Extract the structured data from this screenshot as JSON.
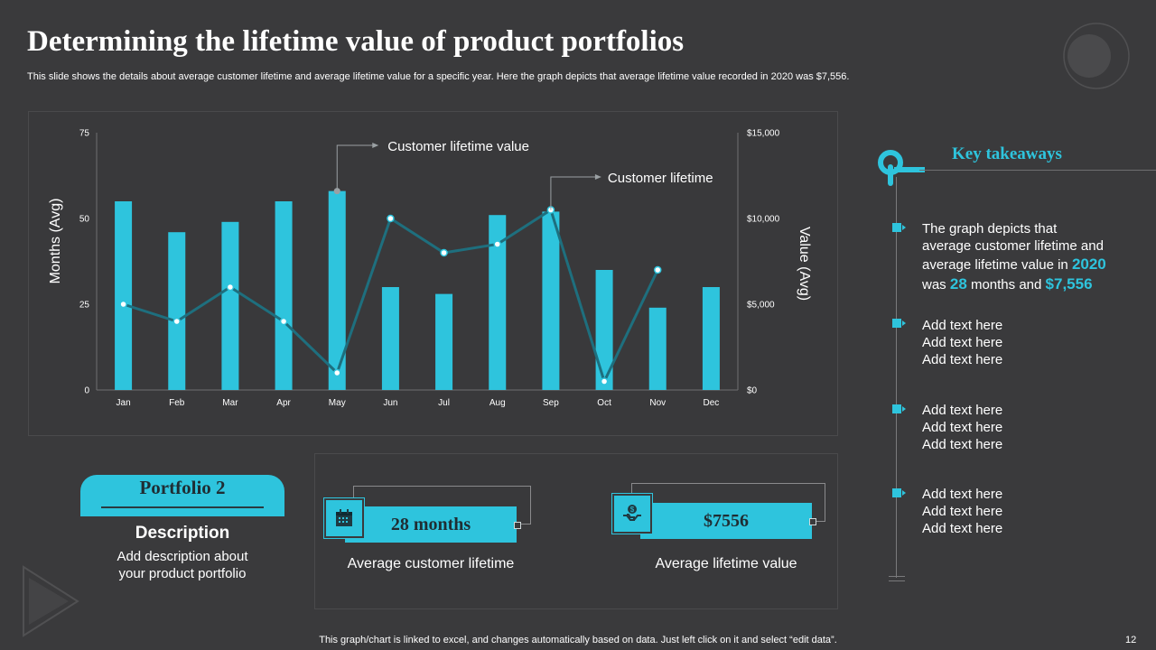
{
  "slide": {
    "title": "Determining the lifetime value of product portfolios",
    "subtitle": "This slide shows the details about average customer lifetime and average lifetime value for a specific year. Here the graph depicts that average lifetime value recorded in 2020 was $7,556.",
    "footer": "This graph/chart is linked to excel,  and changes automatically based on data. Just left click on it and select “edit data”.",
    "page_number": "12"
  },
  "chart_data": {
    "type": "bar",
    "categories": [
      "Jan",
      "Feb",
      "Mar",
      "Apr",
      "May",
      "Jun",
      "Jul",
      "Aug",
      "Sep",
      "Oct",
      "Nov",
      "Dec"
    ],
    "series": [
      {
        "name": "Customer lifetime",
        "type": "bar",
        "axis": "left",
        "values": [
          55,
          46,
          49,
          55,
          58,
          30,
          28,
          51,
          52,
          35,
          24,
          30
        ]
      },
      {
        "name": "Customer lifetime value",
        "type": "line",
        "axis": "right",
        "values": [
          5000,
          4000,
          6000,
          4000,
          1000,
          10000,
          8000,
          8500,
          10500,
          500,
          7000,
          null
        ]
      }
    ],
    "ylabel": "Months (Avg)",
    "y2label": "Value (Avg)",
    "ylim": [
      0,
      75
    ],
    "y2lim": [
      0,
      15000
    ],
    "yticks": [
      "0",
      "25",
      "50",
      "75"
    ],
    "y2ticks": [
      "$0",
      "$5,000",
      "$10,000",
      "$15,000"
    ],
    "annotations": [
      "Customer lifetime value",
      "Customer lifetime"
    ],
    "colors": {
      "bar": "#2ec4dd",
      "line": "#1e6f7e",
      "marker_fill": "#ffffff",
      "marker_edge": "#2ec4dd",
      "highlight_marker": "#9aa0a3"
    }
  },
  "key_takeaways": {
    "title": "Key takeaways",
    "first": {
      "line1": "The graph depicts that",
      "line2": "average customer lifetime and",
      "line3": "average lifetime value in",
      "year": "2020",
      "was": "was",
      "months_value": "28",
      "months_text": "months",
      "and": "and",
      "value": "$7,556"
    },
    "items": [
      {
        "line1": "Add text here",
        "line2": "Add text here",
        "line3": "Add text here"
      },
      {
        "line1": "Add text here",
        "line2": "Add text here",
        "line3": "Add text here"
      },
      {
        "line1": "Add text here",
        "line2": "Add text here",
        "line3": "Add text here"
      }
    ]
  },
  "portfolio": {
    "label": "Portfolio 2",
    "description_title": "Description",
    "description_line1": "Add description about",
    "description_line2": "your product portfolio"
  },
  "metrics": [
    {
      "value": "28 months",
      "caption": "Average customer lifetime",
      "icon": "calendar-icon"
    },
    {
      "value": "$7556",
      "caption": "Average  lifetime value",
      "icon": "money-hand-icon"
    }
  ],
  "colors": {
    "background": "#3a3a3c",
    "accent": "#2ec4dd",
    "line": "#1e6f7e"
  }
}
